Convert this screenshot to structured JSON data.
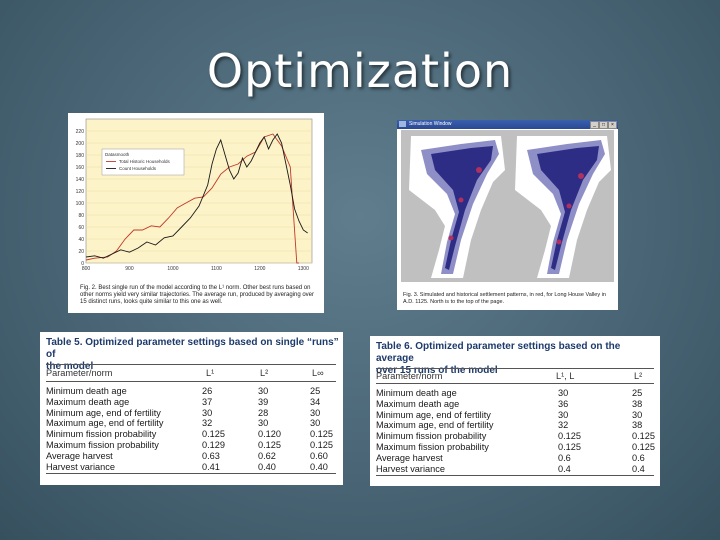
{
  "slide": {
    "title": "Optimization"
  },
  "figure1": {
    "caption": "Fig. 2. Best single run of the model according to the L¹ norm. Other best runs based on other norms yield very similar trajectories. The average run, produced by averaging over 15 distinct runs, looks quite similar to this one as well.",
    "chart_data": {
      "type": "line",
      "title": "",
      "legend_title": "Datasmooth",
      "legend_placement": "top-left",
      "x_ticks": [
        "800",
        "900",
        "1000",
        "1100",
        "1200",
        "1300"
      ],
      "y_ticks": [
        "0",
        "20",
        "40",
        "60",
        "80",
        "100",
        "120",
        "140",
        "160",
        "180",
        "200",
        "220"
      ],
      "xlim": [
        800,
        1320
      ],
      "ylim": [
        0,
        240
      ],
      "series": [
        {
          "name": "Total Historic Households",
          "color": "#c0392b",
          "x": [
            800,
            820,
            850,
            870,
            890,
            910,
            930,
            950,
            970,
            990,
            1010,
            1030,
            1050,
            1070,
            1090,
            1110,
            1130,
            1150,
            1170,
            1190,
            1210,
            1230,
            1250,
            1270,
            1285,
            1290
          ],
          "y": [
            5,
            8,
            10,
            20,
            40,
            55,
            55,
            62,
            60,
            75,
            92,
            100,
            108,
            110,
            125,
            148,
            160,
            165,
            178,
            185,
            210,
            215,
            195,
            160,
            0,
            0
          ]
        },
        {
          "name": "Count Households",
          "color": "#1a1a1a",
          "x": [
            800,
            820,
            840,
            860,
            880,
            900,
            920,
            940,
            960,
            980,
            1000,
            1020,
            1040,
            1060,
            1080,
            1090,
            1100,
            1110,
            1120,
            1130,
            1140,
            1150,
            1160,
            1170,
            1180,
            1190,
            1200,
            1210,
            1220,
            1230,
            1240,
            1250,
            1260,
            1270,
            1280,
            1290,
            1300,
            1310
          ],
          "y": [
            10,
            12,
            8,
            15,
            22,
            18,
            25,
            35,
            30,
            42,
            45,
            60,
            75,
            95,
            130,
            165,
            190,
            205,
            180,
            155,
            140,
            150,
            175,
            160,
            170,
            185,
            200,
            210,
            190,
            205,
            215,
            200,
            165,
            130,
            90,
            70,
            55,
            50
          ]
        }
      ]
    }
  },
  "figure2": {
    "window_title": "Simulation Window",
    "caption": "Fig. 3. Simulated and historical settlement patterns, in red, for Long House Valley in A.D. 1125. North is to the top of the page."
  },
  "table5": {
    "caption_line1": "Table 5. Optimized parameter settings based on single “runs” of",
    "caption_line2": "the model",
    "headers": [
      "Parameter/norm",
      "L¹",
      "L²",
      "L∞"
    ],
    "rows": [
      [
        "Minimum death age",
        "26",
        "30",
        "25"
      ],
      [
        "Maximum death age",
        "37",
        "39",
        "34"
      ],
      [
        "Minimum age, end of fertility",
        "30",
        "28",
        "30"
      ],
      [
        "Maximum age, end of fertility",
        "32",
        "30",
        "30"
      ],
      [
        "Minimum fission probability",
        "0.125",
        "0.120",
        "0.125"
      ],
      [
        "Maximum fission probability",
        "0.129",
        "0.125",
        "0.125"
      ],
      [
        "Average harvest",
        "0.63",
        "0.62",
        "0.60"
      ],
      [
        "Harvest variance",
        "0.41",
        "0.40",
        "0.40"
      ]
    ]
  },
  "table6": {
    "caption_line1": "Table 6. Optimized parameter settings based on the average",
    "caption_line2": "over 15 runs of the model",
    "headers": [
      "Parameter/norm",
      "L¹, L",
      "L²"
    ],
    "rows": [
      [
        "Minimum death age",
        "30",
        "25"
      ],
      [
        "Maximum death age",
        "36",
        "38"
      ],
      [
        "Minimum age, end of fertility",
        "30",
        "30"
      ],
      [
        "Maximum age, end of fertility",
        "32",
        "38"
      ],
      [
        "Minimum fission probability",
        "0.125",
        "0.125"
      ],
      [
        "Maximum fission probability",
        "0.125",
        "0.125"
      ],
      [
        "Average harvest",
        "0.6",
        "0.6"
      ],
      [
        "Harvest variance",
        "0.4",
        "0.4"
      ]
    ]
  }
}
